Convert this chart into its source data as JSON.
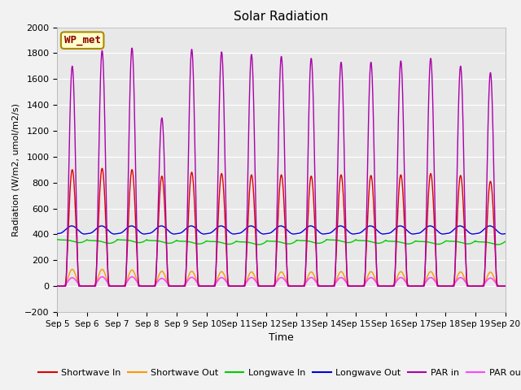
{
  "title": "Solar Radiation",
  "ylabel": "Radiation (W/m2, umol/m2/s)",
  "xlabel": "Time",
  "ylim": [
    -200,
    2000
  ],
  "yticks": [
    -200,
    0,
    200,
    400,
    600,
    800,
    1000,
    1200,
    1400,
    1600,
    1800,
    2000
  ],
  "annotation": "WP_met",
  "x_tick_labels": [
    "Sep 5",
    "Sep 6",
    "Sep 7",
    "Sep 8",
    "Sep 9",
    "Sep 10",
    "Sep 11",
    "Sep 12",
    "Sep 13",
    "Sep 14",
    "Sep 15",
    "Sep 16",
    "Sep 17",
    "Sep 18",
    "Sep 19",
    "Sep 20"
  ],
  "colors": {
    "shortwave_in": "#dd0000",
    "shortwave_out": "#ff9900",
    "longwave_in": "#00cc00",
    "longwave_out": "#0000dd",
    "par_in": "#aa00aa",
    "par_out": "#ff44ff"
  },
  "legend": [
    "Shortwave In",
    "Shortwave Out",
    "Longwave In",
    "Longwave Out",
    "PAR in",
    "PAR out"
  ],
  "background_color": "#e8e8e8",
  "fig_facecolor": "#f2f2f2"
}
